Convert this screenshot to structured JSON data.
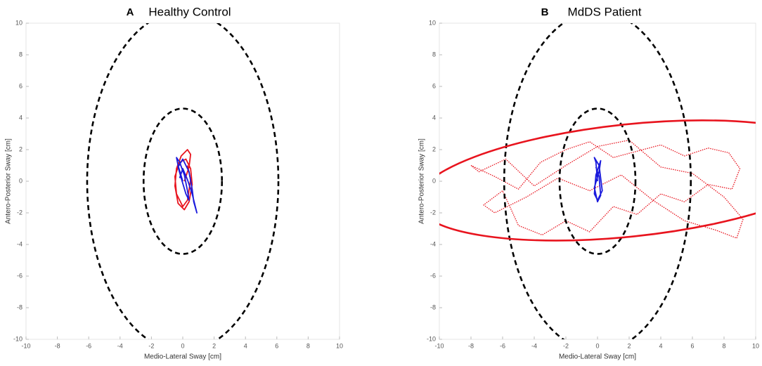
{
  "chart_data": [
    {
      "type": "line",
      "panel": "A",
      "title": "Healthy Control",
      "xlabel": "Medio-Lateral Sway [cm]",
      "ylabel": "Antero-Posterior Sway [cm]",
      "xlim": [
        -10,
        10
      ],
      "ylim": [
        -10,
        10
      ],
      "xticks": [
        -10,
        -8,
        -6,
        -4,
        -2,
        0,
        2,
        4,
        6,
        8,
        10
      ],
      "yticks": [
        -10,
        -8,
        -6,
        -4,
        -2,
        0,
        2,
        4,
        6,
        8,
        10
      ],
      "ellipses": [
        {
          "cx": 0,
          "cy": 0,
          "rx": 6.1,
          "ry": 10.75,
          "angle": 0,
          "color": "#000000",
          "line_style": "dashed"
        },
        {
          "cx": 0,
          "cy": 0,
          "rx": 2.5,
          "ry": 4.6,
          "angle": 0,
          "color": "#000000",
          "line_style": "dashed"
        }
      ],
      "series": [
        {
          "color": "#e8141e",
          "line_style": "solid",
          "x": [
            0.1,
            0.4,
            0.5,
            0.3,
            -0.1,
            -0.4,
            -0.5,
            -0.3,
            0.1,
            0.4,
            0.6,
            0.5,
            0.2,
            -0.2,
            -0.5,
            -0.4,
            0,
            0.3,
            0.5,
            0.3
          ],
          "y": [
            0,
            0.9,
            1.7,
            2.0,
            1.6,
            0.8,
            -0.3,
            -1.4,
            -1.8,
            -1.3,
            -0.2,
            0.8,
            1.4,
            1.2,
            0.3,
            -0.8,
            -1.6,
            -1.2,
            0.1,
            1.0
          ]
        },
        {
          "color": "#1a1adc",
          "line_style": "solid",
          "x": [
            0,
            -0.3,
            -0.4,
            -0.2,
            0.1,
            0.3,
            0.4,
            0.2,
            -0.1,
            -0.3,
            0,
            0.4,
            0.6,
            0.7,
            0.9,
            0.8,
            0.6,
            0.3,
            0,
            -0.2
          ],
          "y": [
            0,
            1.0,
            1.5,
            1.2,
            0.4,
            -0.6,
            -1.2,
            -0.8,
            0.2,
            0.9,
            1.4,
            0.6,
            -0.5,
            -1.3,
            -2.0,
            -1.6,
            -0.8,
            0.1,
            0.8,
            0.2
          ]
        }
      ]
    },
    {
      "type": "line",
      "panel": "B",
      "title": "MdDS Patient",
      "xlabel": "Medio-Lateral Sway [cm]",
      "ylabel": "Antero-Posterior Sway [cm]",
      "xlim": [
        -10,
        10
      ],
      "ylim": [
        -10,
        10
      ],
      "xticks": [
        -10,
        -8,
        -6,
        -4,
        -2,
        0,
        2,
        4,
        6,
        8,
        10
      ],
      "yticks": [
        -10,
        -8,
        -6,
        -4,
        -2,
        0,
        2,
        4,
        6,
        8,
        10
      ],
      "ellipses": [
        {
          "cx": 0,
          "cy": 0,
          "rx": 5.9,
          "ry": 10.75,
          "angle": 0,
          "color": "#000000",
          "line_style": "dashed"
        },
        {
          "cx": 0,
          "cy": 0,
          "rx": 2.4,
          "ry": 4.6,
          "angle": 0,
          "color": "#000000",
          "line_style": "dashed"
        },
        {
          "cx": 2,
          "cy": 0.05,
          "rx": 13.5,
          "ry": 3.55,
          "angle": 6,
          "color": "#e8141e",
          "line_style": "solid"
        }
      ],
      "series": [
        {
          "color": "#e8141e",
          "line_style": "dotted",
          "x": [
            -8,
            -6.5,
            -5,
            -3.6,
            -2,
            -0.5,
            1,
            2.5,
            4,
            5.5,
            7,
            8.3,
            9,
            8.5,
            7,
            5.5,
            4,
            2.5,
            1,
            -0.5,
            -2,
            -3.5,
            -5,
            -6,
            -7.2,
            -6.5,
            -4.5,
            -2.5,
            -0.5,
            1.5,
            3.5,
            5.5,
            7.5,
            8.8,
            9.2,
            8,
            6,
            4,
            2,
            0,
            -2,
            -4,
            -5.8,
            -7.5,
            -8
          ],
          "y": [
            1.0,
            0.3,
            -0.5,
            1.2,
            2.0,
            2.5,
            1.5,
            1.9,
            2.3,
            1.6,
            2.1,
            1.8,
            0.8,
            -0.5,
            -0.2,
            -1.3,
            -0.8,
            -2.1,
            -1.6,
            -3.2,
            -2.5,
            -3.4,
            -2.8,
            -0.6,
            -1.5,
            -2.0,
            -1.0,
            0.2,
            -0.6,
            0.4,
            -1.2,
            -2.5,
            -3.1,
            -3.6,
            -2.4,
            -1.0,
            0.5,
            0.9,
            2.6,
            2.2,
            1.0,
            -0.3,
            1.4,
            0.6,
            1.0
          ]
        },
        {
          "color": "#1a1adc",
          "line_style": "solid",
          "x": [
            0,
            -0.1,
            -0.2,
            0.1,
            0.2,
            0.3,
            0,
            -0.2,
            -0.1,
            0.2,
            0.1,
            -0.2,
            0,
            0.2,
            0.1,
            -0.1
          ],
          "y": [
            0,
            1.2,
            1.5,
            1.0,
            0.2,
            -0.6,
            -1.2,
            -0.8,
            0.4,
            1.3,
            0.6,
            -0.4,
            -1.3,
            -0.9,
            0.3,
            0.9
          ]
        }
      ]
    }
  ]
}
